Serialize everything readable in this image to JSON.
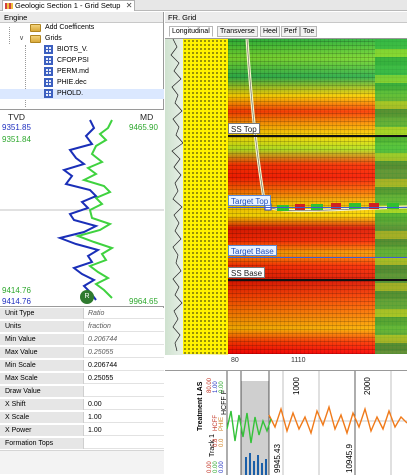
{
  "tab": {
    "title": "Geologic Section 1 - Grid Setup",
    "close": "✕"
  },
  "engine": {
    "title": "Engine",
    "tree": [
      {
        "label": "Add Coefficents",
        "icon": "folder"
      },
      {
        "label": "Grids",
        "icon": "folder"
      },
      {
        "label": "BIOTS_V.",
        "icon": "grid"
      },
      {
        "label": "CFOP.PSI",
        "icon": "grid"
      },
      {
        "label": "PERM.md",
        "icon": "grid"
      },
      {
        "label": "PHIE.dec",
        "icon": "grid"
      },
      {
        "label": "PHOLD.",
        "icon": "grid"
      }
    ]
  },
  "logplot": {
    "tvd_header": "TVD",
    "md_header": "MD",
    "tvd_top_blue": "9351.85",
    "tvd_top_green": "9351.84",
    "md_top": "9465.90",
    "tvd_bottom_green": "9414.76",
    "tvd_bottom_blue": "9414.76",
    "md_bottom": "9964.65",
    "avatar": "R"
  },
  "properties": [
    {
      "key": "Unit Type",
      "value": "Ratio",
      "italic": true
    },
    {
      "key": "Units",
      "value": "fraction",
      "italic": true
    },
    {
      "key": "Min Value",
      "value": "0.206744",
      "italic": true
    },
    {
      "key": "Max Value",
      "value": "0.25055",
      "italic": true
    },
    {
      "key": "Min Scale",
      "value": "0.206744",
      "italic": false
    },
    {
      "key": "Max Scale",
      "value": "0.25055",
      "italic": false
    },
    {
      "key": "Draw Value",
      "value": "",
      "italic": false
    },
    {
      "key": "X Shift",
      "value": "0.00",
      "italic": false
    },
    {
      "key": "X Scale",
      "value": "1.00",
      "italic": false
    },
    {
      "key": "X Power",
      "value": "1.00",
      "italic": false
    },
    {
      "key": "Formation Tops",
      "value": "",
      "italic": false
    }
  ],
  "grid": {
    "title": "FR. Grid",
    "subtabs": [
      "Longitudinal",
      "Transverse",
      "Heel",
      "Perf",
      "Toe"
    ],
    "markers": [
      {
        "label": "SS Top",
        "style": "black"
      },
      {
        "label": "Target Top",
        "style": "blue"
      },
      {
        "label": "Target Base",
        "style": "blue"
      },
      {
        "label": "SS Base",
        "style": "black"
      }
    ],
    "scale_left": "80",
    "scale_mid": "1110"
  },
  "bottom_track": {
    "track_label": "Treatment LAS",
    "track_sub": "Track 1",
    "hdr_label": "HCFF F",
    "ticks": [
      "1000",
      "2000"
    ],
    "depths": [
      "9945.43",
      "10945.9"
    ],
    "scale_top_blue": "1.00",
    "scale_top_red": "80.00",
    "scale_top_green": "0.00",
    "mid_label_1": "HCFF",
    "mid_label_2": "PHIE",
    "mid_val_1": "0.8",
    "mid_val_2": "0.0",
    "bot_val_1": "0.00",
    "bot_val_2": "0.00",
    "bot_val_3": "0.00"
  },
  "colors": {
    "accent": "#1f4fbf",
    "sand": "#fff200",
    "log_blue": "#1a2fb8",
    "log_green": "#3fd23f"
  }
}
